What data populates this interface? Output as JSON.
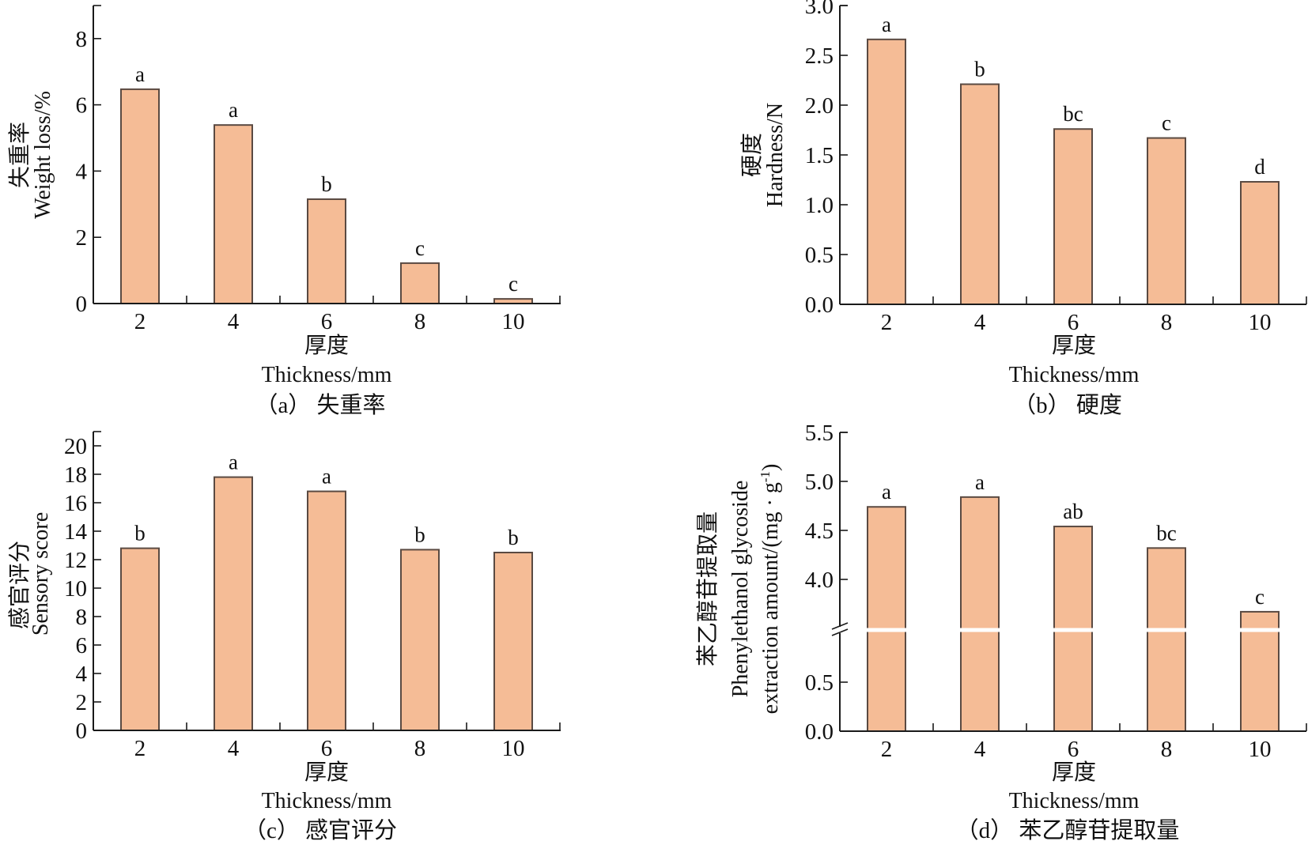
{
  "colors": {
    "bar_fill": "#F5BC96",
    "bar_stroke": "#5a4a42",
    "axis": "#1a1a1a"
  },
  "chart_data": [
    {
      "id": "a",
      "type": "bar",
      "caption": "（a） 失重率",
      "xlabel_cn": "厚度",
      "xlabel_en": "Thickness/mm",
      "ylabel_cn": "失重率",
      "ylabel_en": "Weight loss/%",
      "categories": [
        "2",
        "4",
        "6",
        "8",
        "10"
      ],
      "values": [
        6.47,
        5.39,
        3.15,
        1.22,
        0.14
      ],
      "significance": [
        "a",
        "a",
        "b",
        "c",
        "c"
      ],
      "ylim": [
        0,
        9
      ],
      "yticks": [
        0,
        2,
        4,
        6,
        8
      ],
      "ytick_labels": [
        "0",
        "2",
        "4",
        "6",
        "8"
      ],
      "grid": false,
      "legend": "none"
    },
    {
      "id": "b",
      "type": "bar",
      "caption": "（b） 硬度",
      "xlabel_cn": "厚度",
      "xlabel_en": "Thickness/mm",
      "ylabel_cn": "硬度",
      "ylabel_en": "Hardness/N",
      "categories": [
        "2",
        "4",
        "6",
        "8",
        "10"
      ],
      "values": [
        2.66,
        2.21,
        1.76,
        1.67,
        1.23
      ],
      "significance": [
        "a",
        "b",
        "bc",
        "c",
        "d"
      ],
      "ylim": [
        0,
        3.0
      ],
      "yticks": [
        0,
        0.5,
        1.0,
        1.5,
        2.0,
        2.5,
        3.0
      ],
      "ytick_labels": [
        "0.0",
        "0.5",
        "1.0",
        "1.5",
        "2.0",
        "2.5",
        "3.0"
      ],
      "grid": false,
      "legend": "none"
    },
    {
      "id": "c",
      "type": "bar",
      "caption": "（c） 感官评分",
      "xlabel_cn": "厚度",
      "xlabel_en": "Thickness/mm",
      "ylabel_cn": "感官评分",
      "ylabel_en": "Sensory score",
      "categories": [
        "2",
        "4",
        "6",
        "8",
        "10"
      ],
      "values": [
        12.8,
        17.8,
        16.8,
        12.7,
        12.5
      ],
      "significance": [
        "b",
        "a",
        "a",
        "b",
        "b"
      ],
      "ylim": [
        0,
        21
      ],
      "yticks": [
        0,
        2,
        4,
        6,
        8,
        10,
        12,
        14,
        16,
        18,
        20
      ],
      "ytick_labels": [
        "0",
        "2",
        "4",
        "6",
        "8",
        "10",
        "12",
        "14",
        "16",
        "18",
        "20"
      ],
      "grid": false,
      "legend": "none"
    },
    {
      "id": "d",
      "type": "bar",
      "caption": "（d） 苯乙醇苷提取量",
      "xlabel_cn": "厚度",
      "xlabel_en": "Thickness/mm",
      "ylabel_cn": "苯乙醇苷提取量",
      "ylabel_en_1": "Phenylethanol glycoside",
      "ylabel_en_2": "extraction amount/(mg · g",
      "ylabel_en_sup": "-1",
      "ylabel_en_close": ")",
      "categories": [
        "2",
        "4",
        "6",
        "8",
        "10"
      ],
      "values": [
        4.74,
        4.84,
        4.54,
        4.32,
        3.67
      ],
      "significance": [
        "a",
        "a",
        "ab",
        "bc",
        "c"
      ],
      "axis_break": true,
      "ylim_lower": [
        0,
        1.03
      ],
      "ylim_upper": [
        3.48,
        5.5
      ],
      "yticks": [
        0,
        0.5,
        4.0,
        4.5,
        5.0,
        5.5
      ],
      "ytick_labels": [
        "0.0",
        "0.5",
        "4.0",
        "4.5",
        "5.0",
        "5.5"
      ],
      "grid": false,
      "legend": "none"
    }
  ]
}
